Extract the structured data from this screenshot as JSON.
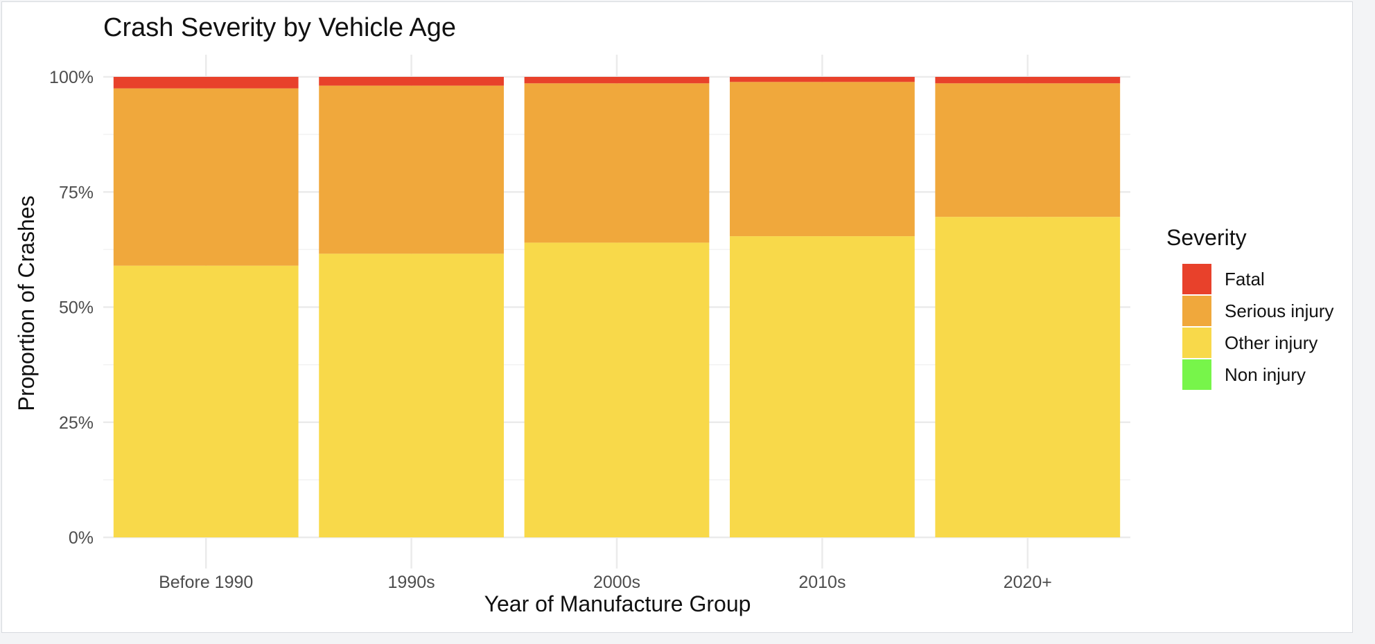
{
  "chart_data": {
    "type": "bar",
    "stacked": true,
    "title": "Crash Severity by Vehicle Age",
    "xlabel": "Year of Manufacture Group",
    "ylabel": "Proportion of Crashes",
    "categories": [
      "Before 1990",
      "1990s",
      "2000s",
      "2010s",
      "2020+"
    ],
    "ylim": [
      0,
      1
    ],
    "yticks": [
      0,
      0.25,
      0.5,
      0.75,
      1.0
    ],
    "ytick_labels": [
      "0%",
      "25%",
      "50%",
      "75%",
      "100%"
    ],
    "grid": true,
    "legend": {
      "title": "Severity",
      "position": "right",
      "entries": [
        "Fatal",
        "Serious injury",
        "Other injury",
        "Non injury"
      ]
    },
    "series": [
      {
        "name": "Other injury",
        "color": "#f8d94a",
        "values": [
          0.59,
          0.616,
          0.64,
          0.654,
          0.696
        ]
      },
      {
        "name": "Serious injury",
        "color": "#f0a83c",
        "values": [
          0.385,
          0.365,
          0.346,
          0.335,
          0.29
        ]
      },
      {
        "name": "Fatal",
        "color": "#e8412b",
        "values": [
          0.025,
          0.019,
          0.014,
          0.011,
          0.014
        ]
      },
      {
        "name": "Non injury",
        "color": "#77f54a",
        "values": [
          0,
          0,
          0,
          0,
          0
        ]
      }
    ]
  }
}
